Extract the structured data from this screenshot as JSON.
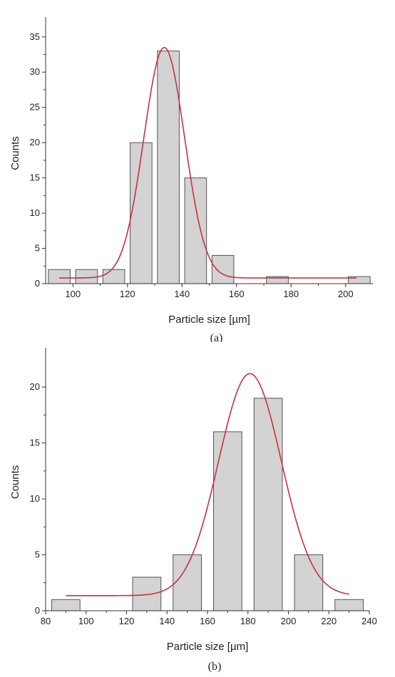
{
  "chart_data": [
    {
      "type": "bar",
      "panel_label": "(a)",
      "xlabel": "Particle size [µm]",
      "ylabel": "Counts",
      "xlim": [
        90,
        210
      ],
      "ylim": [
        0,
        37
      ],
      "xticks": [
        100,
        120,
        140,
        160,
        180,
        200
      ],
      "yticks": [
        0,
        5,
        10,
        15,
        20,
        25,
        30,
        35
      ],
      "bar_color": "#d3d3d3",
      "bar_edge_color": "#555555",
      "fit_color": "#c8323c",
      "bins": [
        {
          "start": 91,
          "end": 99,
          "count": 2
        },
        {
          "start": 101,
          "end": 109,
          "count": 2
        },
        {
          "start": 111,
          "end": 119,
          "count": 2
        },
        {
          "start": 121,
          "end": 129,
          "count": 20
        },
        {
          "start": 131,
          "end": 139,
          "count": 33
        },
        {
          "start": 141,
          "end": 149,
          "count": 15
        },
        {
          "start": 151,
          "end": 159,
          "count": 4
        },
        {
          "start": 171,
          "end": 179,
          "count": 1
        },
        {
          "start": 201,
          "end": 209,
          "count": 1
        }
      ],
      "fit": {
        "type": "gaussian",
        "baseline": 0.8,
        "amplitude": 32.7,
        "center": 133.5,
        "sigma": 7.5,
        "x_range": [
          95,
          204
        ]
      }
    },
    {
      "type": "bar",
      "panel_label": "(b)",
      "xlabel": "Particle size [µm]",
      "ylabel": "Counts",
      "xlim": [
        80,
        240
      ],
      "ylim": [
        0,
        23
      ],
      "xticks": [
        80,
        100,
        120,
        140,
        160,
        180,
        200,
        220,
        240
      ],
      "yticks": [
        0,
        5,
        10,
        15,
        20
      ],
      "bar_color": "#d3d3d3",
      "bar_edge_color": "#555555",
      "fit_color": "#c8323c",
      "bins": [
        {
          "start": 83,
          "end": 97,
          "count": 1
        },
        {
          "start": 123,
          "end": 137,
          "count": 3
        },
        {
          "start": 143,
          "end": 157,
          "count": 5
        },
        {
          "start": 163,
          "end": 177,
          "count": 16
        },
        {
          "start": 183,
          "end": 197,
          "count": 19
        },
        {
          "start": 203,
          "end": 217,
          "count": 5
        },
        {
          "start": 223,
          "end": 237,
          "count": 1
        }
      ],
      "fit": {
        "type": "gaussian",
        "baseline": 1.35,
        "amplitude": 19.85,
        "center": 181,
        "sigma": 15.5,
        "x_range": [
          90,
          230
        ]
      }
    }
  ]
}
